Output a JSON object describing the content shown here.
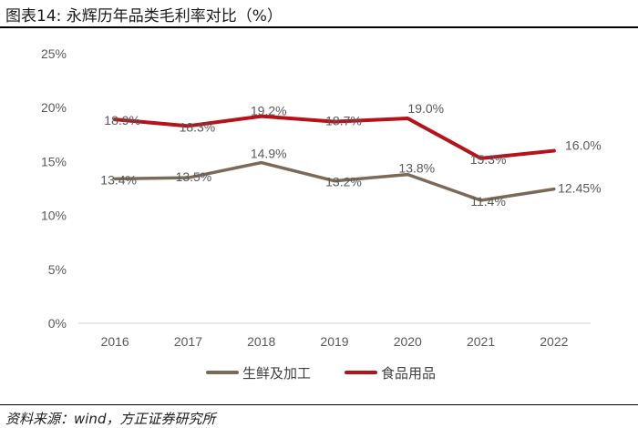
{
  "header": {
    "title": "图表14: 永辉历年品类毛利率对比（%）"
  },
  "footer": {
    "source": "资料来源：wind，方正证券研究所"
  },
  "chart_data": {
    "type": "line",
    "title": "图表14: 永辉历年品类毛利率对比（%）",
    "xlabel": "",
    "ylabel": "",
    "x": [
      "2016",
      "2017",
      "2018",
      "2019",
      "2020",
      "2021",
      "2022"
    ],
    "ylim": [
      0,
      25
    ],
    "yticks": [
      0,
      5,
      10,
      15,
      20,
      25
    ],
    "ytick_labels": [
      "0%",
      "5%",
      "10%",
      "15%",
      "20%",
      "25%"
    ],
    "grid": false,
    "legend_position": "bottom-center",
    "series": [
      {
        "name": "生鲜及加工",
        "color": "#7b6a58",
        "values": [
          13.4,
          13.5,
          14.9,
          13.2,
          13.8,
          11.4,
          12.45
        ],
        "labels": [
          "13.4%",
          "13.5%",
          "14.9%",
          "13.2%",
          "13.8%",
          "11.4%",
          "12.45%"
        ]
      },
      {
        "name": "食品用品",
        "color": "#b5121b",
        "values": [
          18.9,
          18.3,
          19.2,
          18.7,
          19.0,
          15.3,
          16.0
        ],
        "labels": [
          "18.9%",
          "18.3%",
          "19.2%",
          "18.7%",
          "19.0%",
          "15.3%",
          "16.0%"
        ]
      }
    ]
  }
}
